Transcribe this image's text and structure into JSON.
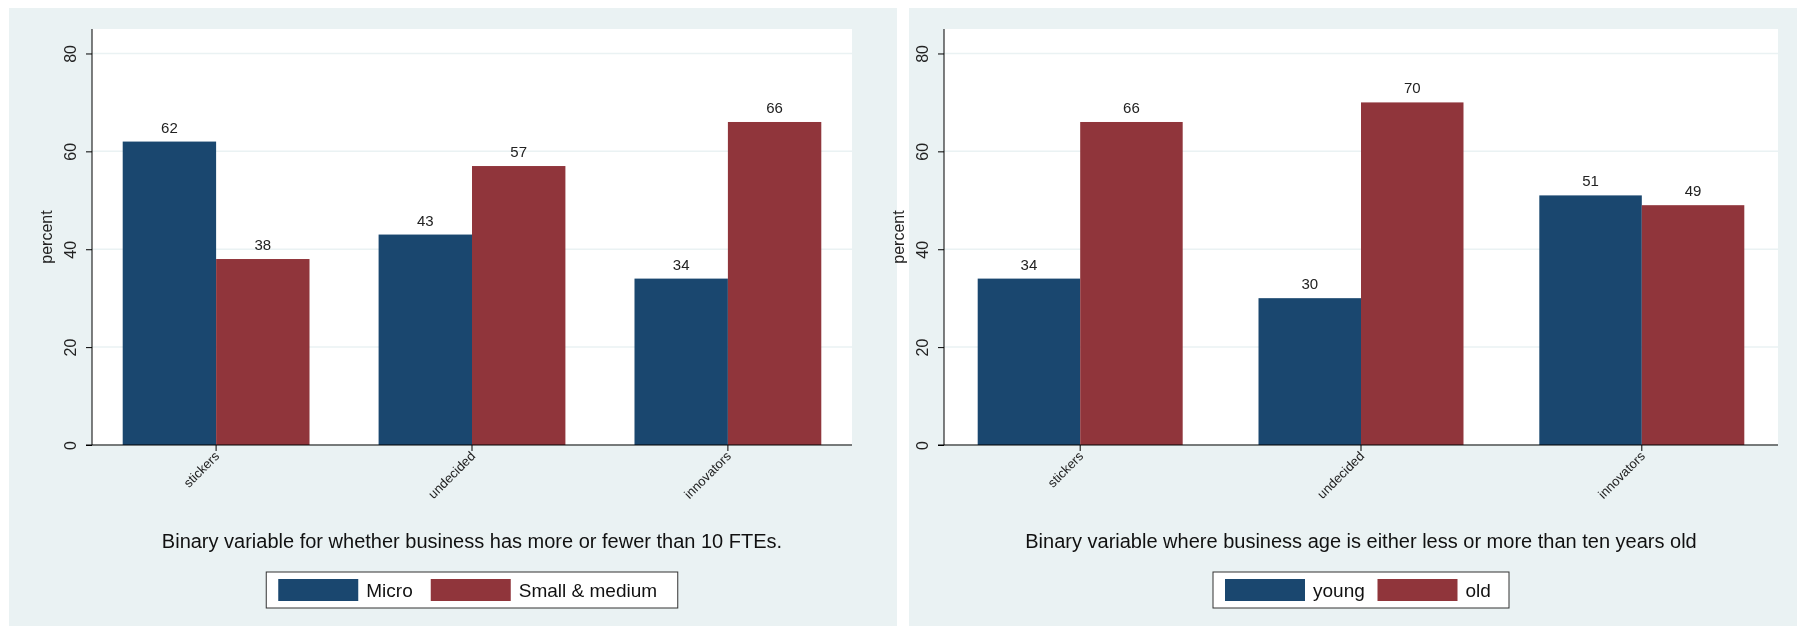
{
  "chart_data": [
    {
      "type": "bar",
      "xlabel": "Binary variable for whether business has more or fewer than 10 FTEs.",
      "ylabel": "percent",
      "categories": [
        "stickers",
        "undecided",
        "innovators"
      ],
      "ylim": [
        0,
        85
      ],
      "yticks": [
        0,
        20,
        40,
        60,
        80
      ],
      "grid": "y",
      "legend": "bottom",
      "data_labels": true,
      "series": [
        {
          "name": "Micro",
          "color": "#1a476f",
          "values": [
            62,
            43,
            34
          ]
        },
        {
          "name": "Small & medium",
          "color": "#90353b",
          "values": [
            38,
            57,
            66
          ]
        }
      ]
    },
    {
      "type": "bar",
      "xlabel": "Binary variable where business age is either less or more than ten years old",
      "ylabel": "percent",
      "categories": [
        "stickers",
        "undecided",
        "innovators"
      ],
      "ylim": [
        0,
        85
      ],
      "yticks": [
        0,
        20,
        40,
        60,
        80
      ],
      "grid": "y",
      "legend": "bottom",
      "data_labels": true,
      "series": [
        {
          "name": "young",
          "color": "#1a476f",
          "values": [
            34,
            30,
            51
          ]
        },
        {
          "name": "old",
          "color": "#90353b",
          "values": [
            66,
            70,
            49
          ]
        }
      ]
    }
  ]
}
